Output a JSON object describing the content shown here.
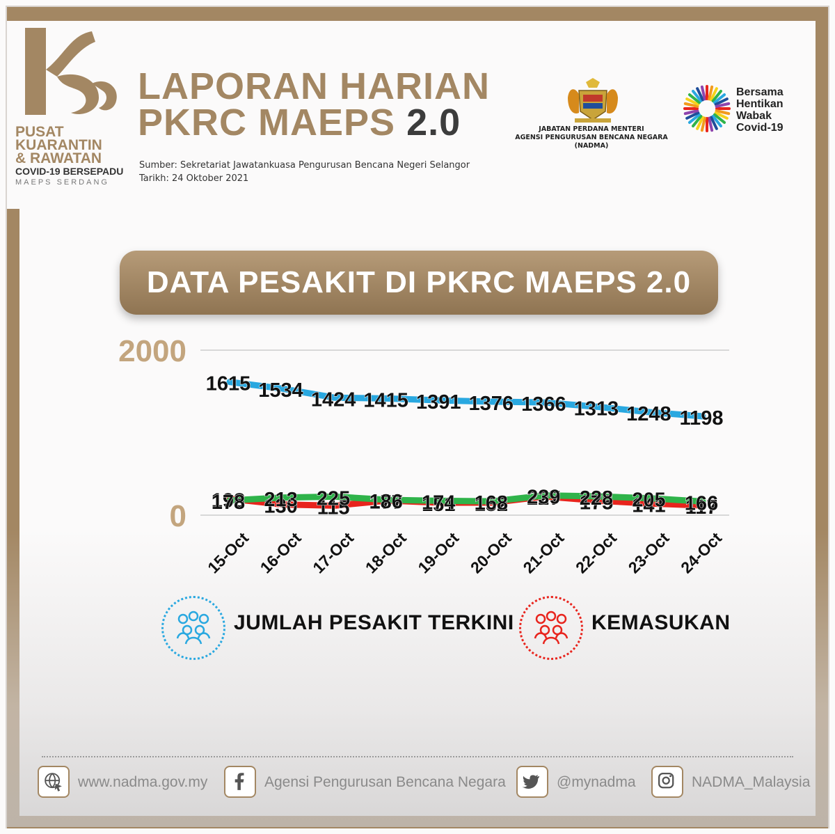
{
  "header": {
    "logo_lines": [
      "PUSAT",
      "KUARANTIN",
      "& RAWATAN",
      "COVID-19 BERSEPADU",
      "MAEPS SERDANG"
    ],
    "title_line1": "LAPORAN HARIAN",
    "title_line2": "PKRC MAEPS",
    "title_version": "2.0",
    "source": "Sumber: Sekretariat Jawatankuasa Pengurusan Bencana Negeri Selangor",
    "date": "Tarikh: 24 Oktober 2021",
    "crest_line1": "JABATAN PERDANA MENTERI",
    "crest_line2": "AGENSI PENGURUSAN BENCANA NEGARA (NADMA)",
    "campaign_lines": [
      "Bersama",
      "Hentikan",
      "Wabak",
      "Covid-19"
    ]
  },
  "banner": {
    "title": "DATA PESAKIT DI PKRC MAEPS 2.0"
  },
  "chart_data": {
    "type": "line",
    "categories": [
      "15-Oct",
      "16-Oct",
      "17-Oct",
      "18-Oct",
      "19-Oct",
      "20-Oct",
      "21-Oct",
      "22-Oct",
      "23-Oct",
      "24-Oct"
    ],
    "y_tick_labels": [
      "2000",
      "0"
    ],
    "ylim": [
      0,
      2000
    ],
    "grid": true,
    "series": [
      {
        "name": "JUMLAH PESAKIT TERKINI",
        "color": "#29a8e0",
        "values": [
          1615,
          1534,
          1424,
          1415,
          1391,
          1376,
          1366,
          1313,
          1248,
          1198
        ]
      },
      {
        "name": "KEMASUKAN",
        "color": "#e8241d",
        "values": [
          198,
          130,
          115,
          177,
          151,
          152,
          227,
          175,
          141,
          117
        ]
      },
      {
        "color": "#2fb34a",
        "values": [
          178,
          213,
          225,
          186,
          174,
          168,
          239,
          228,
          205,
          166
        ]
      }
    ]
  },
  "footer": {
    "website": "www.nadma.gov.my",
    "facebook": "Agensi Pengurusan Bencana Negara",
    "twitter": "@mynadma",
    "instagram": "NADMA_Malaysia"
  },
  "colors": {
    "gold": "#a38763",
    "dark": "#3c3c3c"
  }
}
